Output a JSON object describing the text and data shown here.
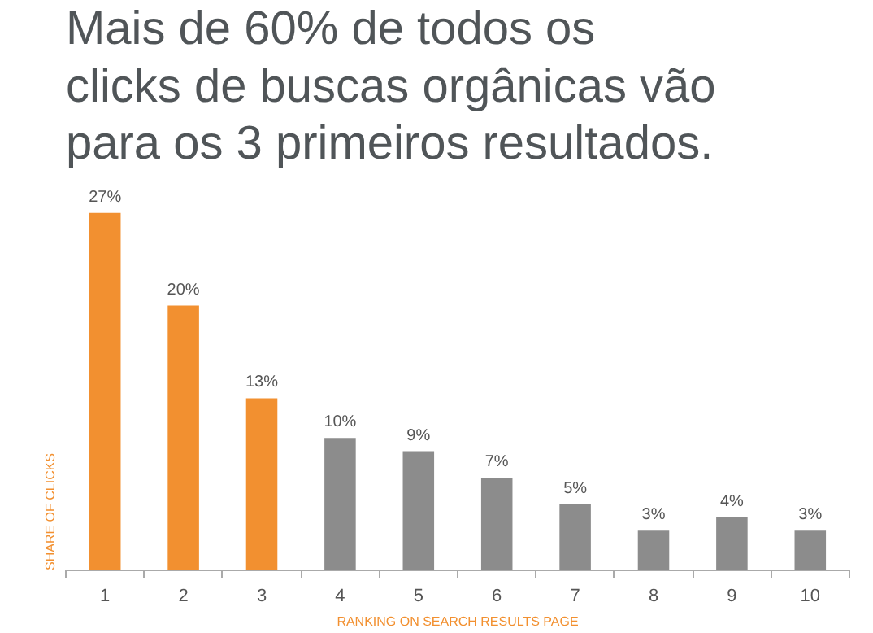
{
  "chart_data": {
    "type": "bar",
    "title": "Mais de 60% de todos os\nclicks de buscas orgânicas vão\npara os 3 primeiros resultados.",
    "xlabel": "RANKING ON SEARCH RESULTS PAGE",
    "ylabel": "SHARE OF CLICKS",
    "categories": [
      "1",
      "2",
      "3",
      "4",
      "5",
      "6",
      "7",
      "8",
      "9",
      "10"
    ],
    "values": [
      27,
      20,
      13,
      10,
      9,
      7,
      5,
      3,
      4,
      3
    ],
    "colors": [
      "#f29030",
      "#f29030",
      "#f29030",
      "#8c8c8c",
      "#8c8c8c",
      "#8c8c8c",
      "#8c8c8c",
      "#8c8c8c",
      "#8c8c8c",
      "#8c8c8c"
    ],
    "value_labels": [
      "27%",
      "20%",
      "13%",
      "10%",
      "9%",
      "7%",
      "5%",
      "3%",
      "4%",
      "3%"
    ],
    "grid": false
  }
}
